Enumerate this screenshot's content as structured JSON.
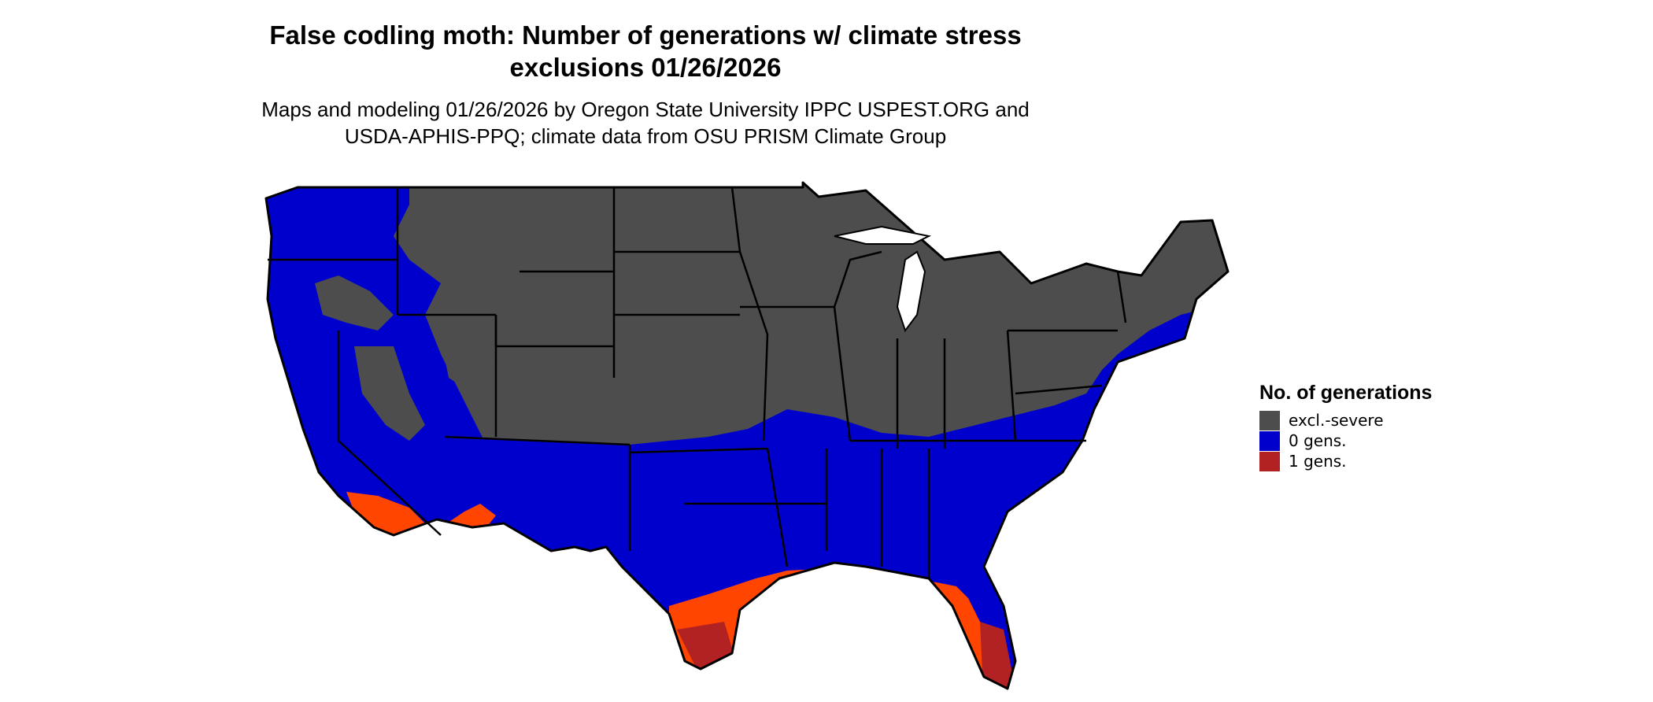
{
  "title": {
    "line1": "False codling moth: Number of generations w/ climate stress",
    "line2": "exclusions 01/26/2026"
  },
  "subtitle": {
    "line1": "Maps and modeling 01/26/2026 by Oregon State University IPPC USPEST.ORG and",
    "line2": "USDA-APHIS-PPQ; climate data from OSU PRISM Climate Group"
  },
  "legend": {
    "title": "No. of generations",
    "items": [
      {
        "label": "excl.-severe",
        "color": "#4d4d4d"
      },
      {
        "label": "0 gens.",
        "color": "#0000cd"
      },
      {
        "label": "1 gens.",
        "color": "#b22222"
      }
    ]
  },
  "colors": {
    "excluded": "#4d4d4d",
    "zero_gens": "#0000cd",
    "one_gen_orange": "#ff4500",
    "one_gen_red": "#b22222",
    "one_gen_dark": "#8b1a1a",
    "borders": "#000000"
  }
}
